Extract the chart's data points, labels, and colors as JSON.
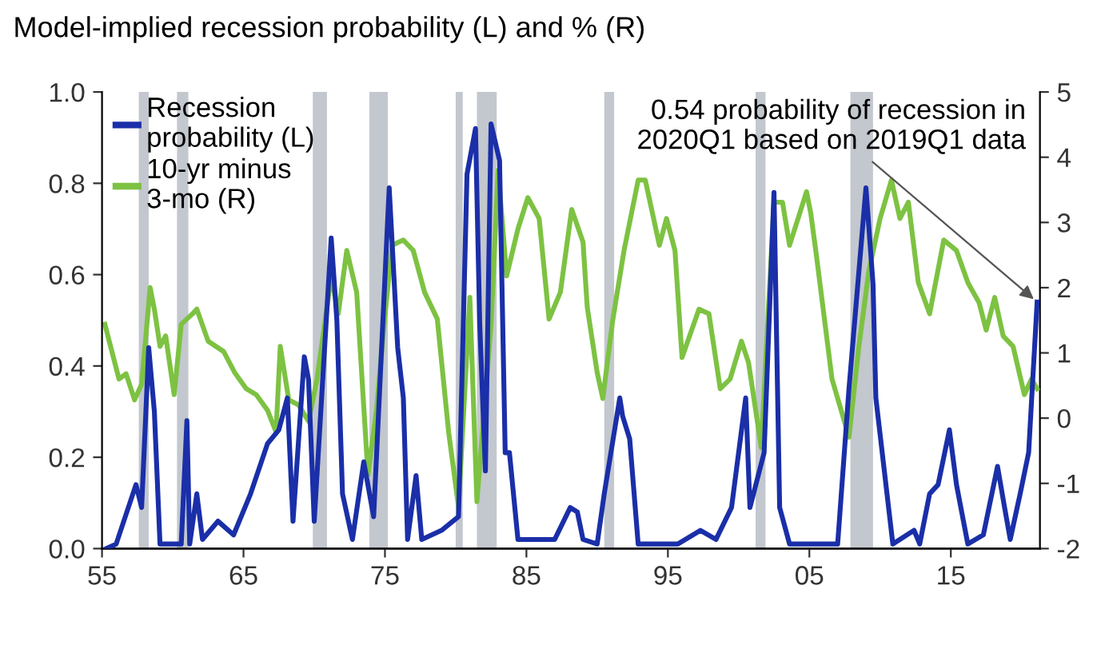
{
  "chart_data": {
    "type": "line",
    "title": "Model-implied recession probability (L) and % (R)",
    "xlim": [
      1955,
      2021.3
    ],
    "xticks": [
      {
        "value": 1955,
        "label": "55"
      },
      {
        "value": 1965,
        "label": "65"
      },
      {
        "value": 1975,
        "label": "75"
      },
      {
        "value": 1985,
        "label": "85"
      },
      {
        "value": 1995,
        "label": "95"
      },
      {
        "value": 2005,
        "label": "05"
      },
      {
        "value": 2015,
        "label": "15"
      }
    ],
    "ylim": [
      0,
      1
    ],
    "yticks": [
      {
        "value": 0,
        "label": "0.0"
      },
      {
        "value": 0.2,
        "label": "0.2"
      },
      {
        "value": 0.4,
        "label": "0.4"
      },
      {
        "value": 0.6,
        "label": "0.6"
      },
      {
        "value": 0.8,
        "label": "0.8"
      },
      {
        "value": 1,
        "label": "1.0"
      }
    ],
    "y2lim": [
      -2,
      5
    ],
    "y2ticks": [
      -2,
      -1,
      0,
      1,
      2,
      3,
      4,
      5
    ],
    "grid": false,
    "legend": "top left",
    "series": [
      {
        "name": "Recession\nprobability (L)",
        "color": "#1a2fa8",
        "axis": "y",
        "x": [
          1955.3,
          1956.0,
          1957.4,
          1957.8,
          1958.3,
          1958.7,
          1959.1,
          1960.6,
          1961.0,
          1961.2,
          1961.7,
          1962.1,
          1963.2,
          1964.3,
          1965.5,
          1966.7,
          1967.5,
          1968.1,
          1968.5,
          1969.3,
          1969.6,
          1970.0,
          1971.2,
          1971.6,
          1972.0,
          1972.7,
          1973.5,
          1974.2,
          1975.3,
          1975.9,
          1976.3,
          1976.6,
          1977.2,
          1977.6,
          1979.0,
          1980.2,
          1980.8,
          1981.4,
          1981.7,
          1982.1,
          1982.5,
          1983.1,
          1983.5,
          1983.8,
          1984.4,
          1987.0,
          1988.1,
          1988.6,
          1989.0,
          1990.0,
          1990.5,
          1991.6,
          1991.8,
          1992.3,
          1992.9,
          1995.7,
          1997.3,
          1998.4,
          1999.5,
          2000.5,
          2000.8,
          2001.8,
          2002.5,
          2002.9,
          2003.6,
          2007.0,
          2007.8,
          2009.0,
          2009.5,
          2009.7,
          2010.9,
          2012.4,
          2012.8,
          2013.5,
          2014.1,
          2014.9,
          2015.4,
          2016.2,
          2017.3,
          2018.3,
          2018.8,
          2019.2,
          2019.9,
          2020.5,
          2021.1
        ],
        "values": [
          0.0,
          0.01,
          0.14,
          0.09,
          0.44,
          0.3,
          0.01,
          0.01,
          0.28,
          0.01,
          0.12,
          0.02,
          0.06,
          0.03,
          0.12,
          0.23,
          0.26,
          0.33,
          0.06,
          0.42,
          0.37,
          0.06,
          0.68,
          0.5,
          0.12,
          0.02,
          0.19,
          0.07,
          0.79,
          0.44,
          0.33,
          0.02,
          0.16,
          0.02,
          0.04,
          0.07,
          0.82,
          0.92,
          0.49,
          0.17,
          0.93,
          0.85,
          0.21,
          0.21,
          0.02,
          0.02,
          0.09,
          0.08,
          0.02,
          0.01,
          0.12,
          0.33,
          0.29,
          0.24,
          0.01,
          0.01,
          0.04,
          0.02,
          0.09,
          0.33,
          0.09,
          0.21,
          0.78,
          0.09,
          0.01,
          0.01,
          0.35,
          0.79,
          0.58,
          0.33,
          0.01,
          0.04,
          0.01,
          0.12,
          0.14,
          0.26,
          0.14,
          0.01,
          0.03,
          0.18,
          0.09,
          0.02,
          0.12,
          0.21,
          0.54
        ]
      },
      {
        "name": "10-yr minus\n3-mo (R)",
        "color": "#7dc242",
        "axis": "y2",
        "x": [
          1955.2,
          1956.2,
          1956.7,
          1957.3,
          1957.8,
          1958.4,
          1958.7,
          1959.1,
          1959.5,
          1960.1,
          1960.6,
          1961.4,
          1961.7,
          1962.5,
          1963.6,
          1964.4,
          1965.2,
          1965.9,
          1966.7,
          1967.3,
          1967.6,
          1968.2,
          1968.9,
          1969.6,
          1970.2,
          1971.2,
          1971.7,
          1972.3,
          1973.0,
          1973.8,
          1974.4,
          1974.9,
          1975.5,
          1976.3,
          1977.0,
          1977.8,
          1978.7,
          1979.5,
          1980.2,
          1981.0,
          1981.5,
          1982.5,
          1983.0,
          1983.6,
          1984.4,
          1985.1,
          1985.9,
          1986.6,
          1987.4,
          1988.2,
          1989.0,
          1989.3,
          1990.0,
          1990.4,
          1991.1,
          1991.9,
          1992.9,
          1993.4,
          1994.4,
          1994.9,
          1995.5,
          1996.0,
          1997.2,
          1997.9,
          1998.7,
          1999.4,
          2000.2,
          2000.7,
          2001.6,
          2002.5,
          2003.1,
          2003.6,
          2004.8,
          2005.1,
          2005.5,
          2006.6,
          2007.8,
          2008.5,
          2009.2,
          2010.0,
          2010.8,
          2011.4,
          2012.0,
          2012.7,
          2013.5,
          2014.5,
          2015.4,
          2016.2,
          2017.0,
          2017.5,
          2018.1,
          2018.7,
          2019.4,
          2020.2,
          2020.7,
          2021.1
        ],
        "values": [
          1.44,
          0.6,
          0.68,
          0.28,
          0.52,
          2.0,
          1.67,
          1.1,
          1.26,
          0.36,
          1.44,
          1.6,
          1.67,
          1.18,
          1.02,
          0.69,
          0.45,
          0.36,
          0.12,
          -0.21,
          1.1,
          0.28,
          0.2,
          -0.05,
          0.6,
          2.18,
          1.6,
          2.57,
          1.93,
          -0.87,
          0.12,
          1.35,
          2.65,
          2.73,
          2.57,
          1.93,
          1.52,
          -0.21,
          -1.36,
          1.85,
          -1.28,
          1.44,
          3.8,
          2.18,
          2.9,
          3.38,
          3.06,
          1.52,
          1.93,
          3.2,
          2.7,
          1.7,
          0.7,
          0.3,
          1.5,
          2.57,
          3.65,
          3.65,
          2.65,
          3.06,
          2.57,
          0.93,
          1.67,
          1.6,
          0.45,
          0.6,
          1.18,
          0.85,
          -0.45,
          3.31,
          3.31,
          2.65,
          3.47,
          3.14,
          2.49,
          0.6,
          -0.29,
          1.1,
          2.25,
          3.06,
          3.65,
          3.06,
          3.31,
          2.08,
          1.6,
          2.73,
          2.57,
          2.08,
          1.77,
          1.35,
          1.85,
          1.26,
          1.1,
          0.36,
          0.6,
          0.45
        ]
      }
    ],
    "bands": [
      {
        "axis": "x",
        "from": 1957.6,
        "to": 1958.3,
        "color": "#c3c7ce"
      },
      {
        "axis": "x",
        "from": 1960.3,
        "to": 1961.1,
        "color": "#c3c7ce"
      },
      {
        "axis": "x",
        "from": 1969.9,
        "to": 1970.9,
        "color": "#c3c7ce"
      },
      {
        "axis": "x",
        "from": 1973.9,
        "to": 1975.2,
        "color": "#c3c7ce"
      },
      {
        "axis": "x",
        "from": 1980.0,
        "to": 1980.5,
        "color": "#c3c7ce"
      },
      {
        "axis": "x",
        "from": 1981.5,
        "to": 1982.9,
        "color": "#c3c7ce"
      },
      {
        "axis": "x",
        "from": 1990.5,
        "to": 1991.2,
        "color": "#c3c7ce"
      },
      {
        "axis": "x",
        "from": 2001.2,
        "to": 2001.9,
        "color": "#c3c7ce"
      },
      {
        "axis": "x",
        "from": 2007.9,
        "to": 2009.5,
        "color": "#c3c7ce"
      }
    ],
    "annotations": [
      {
        "text": "0.54 probability of recession in\n2020Q1 based on 2019Q1 data",
        "x": 2021.1,
        "y": 0.54
      }
    ]
  }
}
